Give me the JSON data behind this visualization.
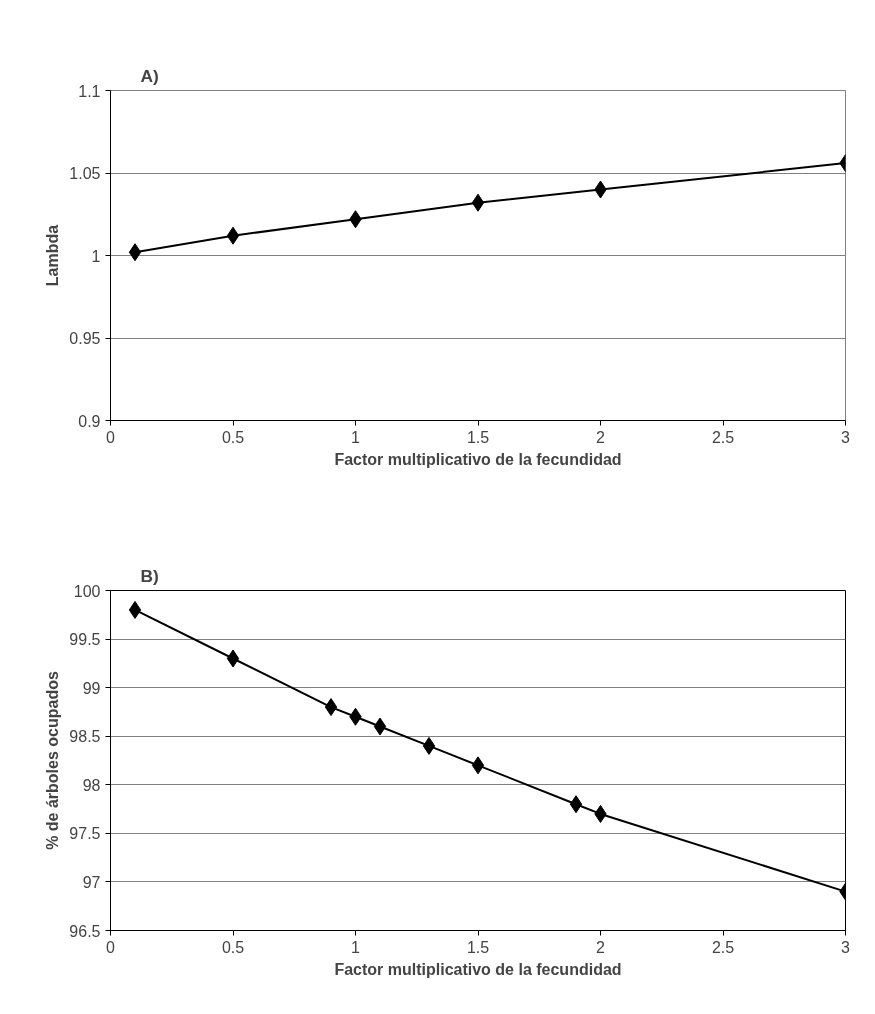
{
  "chart_data": [
    {
      "type": "line",
      "title": "A)",
      "xlabel": "Factor multiplicativo de la fecundidad",
      "ylabel": "Lambda",
      "x": [
        0.1,
        0.5,
        1,
        1.5,
        2,
        3
      ],
      "series": [
        {
          "color": "#000000",
          "values": [
            1.002,
            1.012,
            1.022,
            1.032,
            1.04,
            1.056
          ]
        }
      ],
      "xlim": [
        0,
        3
      ],
      "xticks": [
        0,
        0.5,
        1,
        1.5,
        2,
        2.5,
        3
      ],
      "ylim": [
        0.9,
        1.1
      ],
      "yticks": [
        0.9,
        0.95,
        1,
        1.05,
        1.1
      ],
      "grid": "y",
      "marker": "diamond",
      "line_style": "solid"
    },
    {
      "type": "line",
      "title": "B)",
      "xlabel": "Factor multiplicativo de la fecundidad",
      "ylabel": "% de árboles ocupados",
      "x": [
        0.1,
        0.5,
        0.9,
        1,
        1.1,
        1.3,
        1.5,
        1.9,
        2,
        3
      ],
      "series": [
        {
          "color": "#000000",
          "values": [
            99.8,
            99.3,
            98.8,
            98.7,
            98.6,
            98.4,
            98.2,
            97.8,
            97.7,
            96.9
          ]
        }
      ],
      "xlim": [
        0,
        3
      ],
      "xticks": [
        0,
        0.5,
        1,
        1.5,
        2,
        2.5,
        3
      ],
      "ylim": [
        96.5,
        100
      ],
      "yticks": [
        96.5,
        97,
        97.5,
        98,
        98.5,
        99,
        99.5,
        100
      ],
      "grid": "y",
      "marker": "diamond",
      "line_style": "solid"
    }
  ]
}
